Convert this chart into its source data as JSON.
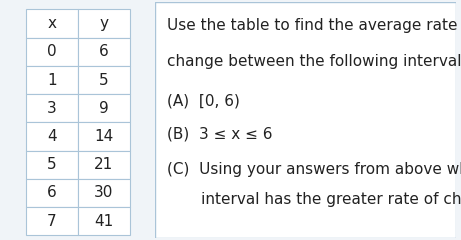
{
  "table_headers": [
    "x",
    "y"
  ],
  "table_rows": [
    [
      "0",
      "6"
    ],
    [
      "1",
      "5"
    ],
    [
      "3",
      "9"
    ],
    [
      "4",
      "14"
    ],
    [
      "5",
      "21"
    ],
    [
      "6",
      "30"
    ],
    [
      "7",
      "41"
    ]
  ],
  "text_lines": [
    "Use the table to find the average rate of",
    "change between the following intervals:",
    "(A)  [0, 6)",
    "(B)  3 ≤ x ≤ 6",
    "(C)  Using your answers from above which",
    "       interval has the greater rate of change?"
  ],
  "bg_color": "#f0f4f8",
  "table_bg": "#ffffff",
  "border_color": "#aac4d8",
  "text_color": "#222222",
  "header_fontsize": 11,
  "row_fontsize": 11,
  "text_fontsize": 11
}
